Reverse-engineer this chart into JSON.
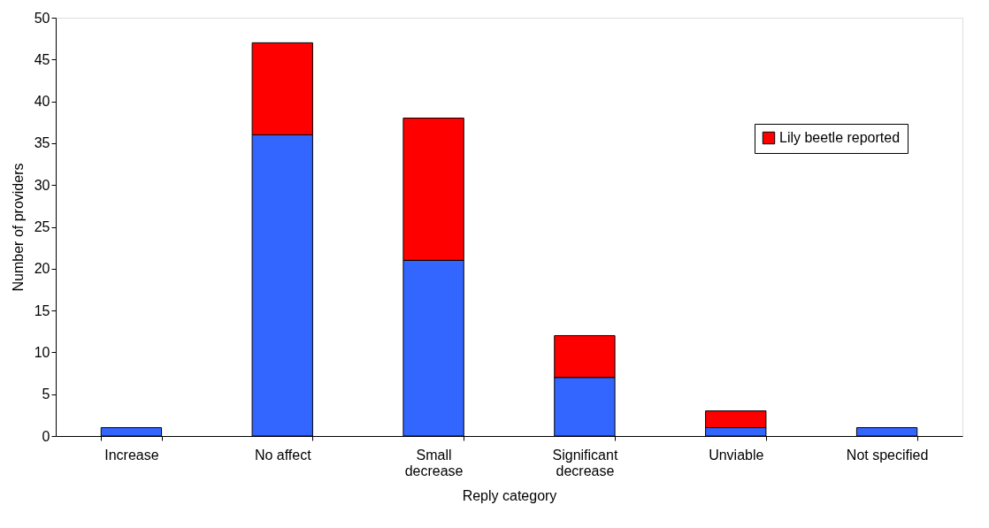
{
  "chart_data": {
    "type": "bar",
    "stacked": true,
    "xlabel": "Reply category",
    "ylabel": "Number of providers",
    "categories": [
      "Increase",
      "No affect",
      "Small decrease",
      "Significant decrease",
      "Unviable",
      "Not specified"
    ],
    "series": [
      {
        "color": "#3366ff",
        "values": [
          1,
          36,
          21,
          7,
          1,
          1
        ]
      },
      {
        "name": "Lily beetle reported",
        "color": "#ff0000",
        "values": [
          null,
          11,
          17,
          5,
          2,
          null
        ]
      }
    ],
    "ylim": [
      0,
      50
    ],
    "yticks": [
      0,
      5,
      10,
      15,
      20,
      25,
      30,
      35,
      40,
      45,
      50
    ],
    "grid": false,
    "legend": "top right"
  }
}
